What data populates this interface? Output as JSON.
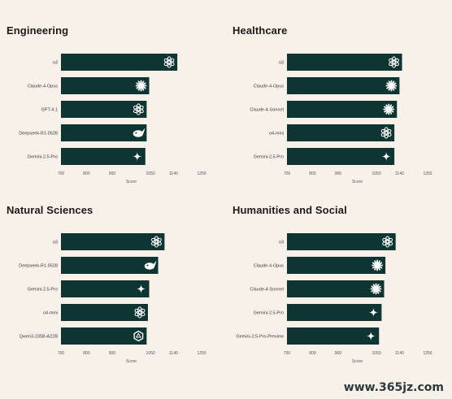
{
  "chart_data": [
    {
      "type": "bar",
      "orientation": "horizontal",
      "title": "Engineering",
      "categories": [
        "o3",
        "Claude-4-Opus",
        "GPT-4.1",
        "Deepseek-R1-0528",
        "Gemini-2.5-Pro"
      ],
      "values": [
        1155,
        1045,
        1035,
        1035,
        1030
      ],
      "icons": [
        "openai-icon",
        "anthropic-icon",
        "openai-icon",
        "deepseek-icon",
        "gemini-icon"
      ],
      "xlabel": "Score",
      "xlim": [
        700,
        1250
      ],
      "xticks": [
        700,
        800,
        900,
        1050,
        1140,
        1250
      ],
      "xtick_labels": [
        "700",
        "800",
        "900",
        "1050",
        "1140",
        "1250"
      ],
      "bar_color": "#0f3532"
    },
    {
      "type": "bar",
      "orientation": "horizontal",
      "title": "Healthcare",
      "categories": [
        "o3",
        "Claude-4-Opus",
        "Claude-4-Sonnet",
        "o4-mini",
        "Gemini-2.5-Pro"
      ],
      "values": [
        1150,
        1140,
        1130,
        1120,
        1120
      ],
      "icons": [
        "openai-icon",
        "anthropic-icon",
        "anthropic-icon",
        "openai-icon",
        "gemini-icon"
      ],
      "xlabel": "Score",
      "xlim": [
        700,
        1250
      ],
      "xticks": [
        700,
        800,
        900,
        1050,
        1140,
        1250
      ],
      "xtick_labels": [
        "700",
        "800",
        "900",
        "1050",
        "1140",
        "1250"
      ],
      "bar_color": "#0f3532"
    },
    {
      "type": "bar",
      "orientation": "horizontal",
      "title": "Natural Sciences",
      "categories": [
        "o3",
        "Deepseek-R1-0528",
        "Gemini-2.5-Pro",
        "o4-mini",
        "Qwen3-235B-A22B"
      ],
      "values": [
        1105,
        1080,
        1045,
        1040,
        1035
      ],
      "icons": [
        "openai-icon",
        "deepseek-icon",
        "gemini-icon",
        "openai-icon",
        "qwen-icon"
      ],
      "xlabel": "Score",
      "xlim": [
        700,
        1250
      ],
      "xticks": [
        700,
        800,
        900,
        1050,
        1140,
        1250
      ],
      "xtick_labels": [
        "700",
        "800",
        "900",
        "1050",
        "1140",
        "1250"
      ],
      "bar_color": "#0f3532"
    },
    {
      "type": "bar",
      "orientation": "horizontal",
      "title": "Humanities and Social",
      "categories": [
        "o3",
        "Claude-4-Opus",
        "Claude-4-Sonnet",
        "Gemini-2.5-Pro",
        "Gemini-2.5-Pro-Preview"
      ],
      "values": [
        1125,
        1085,
        1080,
        1070,
        1060
      ],
      "icons": [
        "openai-icon",
        "anthropic-icon",
        "anthropic-icon",
        "gemini-icon",
        "gemini-icon"
      ],
      "xlabel": "Score",
      "xlim": [
        700,
        1250
      ],
      "xticks": [
        700,
        800,
        900,
        1050,
        1140,
        1250
      ],
      "xtick_labels": [
        "700",
        "800",
        "900",
        "1050",
        "1140",
        "1250"
      ],
      "bar_color": "#0f3532"
    }
  ],
  "watermark": "www.365jz.com"
}
